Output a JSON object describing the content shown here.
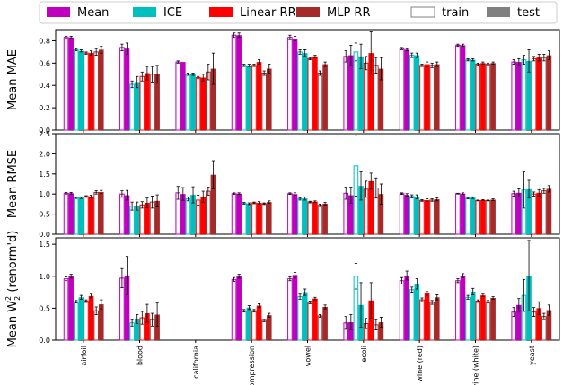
{
  "chart_data": {
    "type": "bar",
    "categories": [
      "airfoil",
      "blood",
      "california",
      "ompression",
      "vowel",
      "ecoli",
      "wine (red)",
      "vine (white)",
      "yeast"
    ],
    "legend": {
      "placement": "top-center",
      "entries": [
        {
          "label": "Mean",
          "color": "#bf00bf",
          "style": "filled"
        },
        {
          "label": "ICE",
          "color": "#00bfbf",
          "style": "filled"
        },
        {
          "label": "Linear RR",
          "color": "#ff0000",
          "style": "filled"
        },
        {
          "label": "MLP RR",
          "color": "#a52a2a",
          "style": "filled"
        },
        {
          "label": "train",
          "color": "#808080",
          "style": "outline"
        },
        {
          "label": "test",
          "color": "#808080",
          "style": "filled"
        }
      ]
    },
    "method_colors": [
      "#bf00bf",
      "#00bfbf",
      "#ff0000",
      "#a52a2a"
    ],
    "bar_order": "per method: train then test",
    "panels": [
      {
        "ylabel": "Mean MAE",
        "ylim": [
          0,
          0.9
        ],
        "yticks": [
          "0.0",
          "0.2",
          "0.4",
          "0.6",
          "0.8"
        ],
        "ytick_values": [
          0,
          0.2,
          0.4,
          0.6,
          0.8
        ],
        "series": [
          {
            "name": "Mean train",
            "values": [
              0.83,
              0.74,
              0.61,
              0.85,
              0.83,
              0.66,
              0.73,
              0.76,
              0.61
            ],
            "errors": [
              0.01,
              0.03,
              0.01,
              0.02,
              0.02,
              0.05,
              0.01,
              0.01,
              0.02
            ]
          },
          {
            "name": "Mean test",
            "values": [
              0.83,
              0.73,
              0.61,
              0.85,
              0.82,
              0.67,
              0.72,
              0.76,
              0.61
            ],
            "errors": [
              0.01,
              0.05,
              0.0,
              0.02,
              0.02,
              0.09,
              0.01,
              0.01,
              0.03
            ]
          },
          {
            "name": "ICE train",
            "values": [
              0.72,
              0.41,
              0.5,
              0.58,
              0.7,
              0.7,
              0.67,
              0.63,
              0.63
            ],
            "errors": [
              0.01,
              0.03,
              0.01,
              0.01,
              0.02,
              0.08,
              0.02,
              0.01,
              0.04
            ]
          },
          {
            "name": "ICE test",
            "values": [
              0.71,
              0.43,
              0.5,
              0.58,
              0.69,
              0.66,
              0.67,
              0.63,
              0.62
            ],
            "errors": [
              0.01,
              0.05,
              0.01,
              0.01,
              0.03,
              0.11,
              0.02,
              0.01,
              0.1
            ]
          },
          {
            "name": "Linear RR train",
            "values": [
              0.69,
              0.48,
              0.47,
              0.58,
              0.64,
              0.6,
              0.58,
              0.59,
              0.64
            ],
            "errors": [
              0.01,
              0.04,
              0.01,
              0.01,
              0.01,
              0.06,
              0.01,
              0.01,
              0.02
            ]
          },
          {
            "name": "Linear RR test",
            "values": [
              0.69,
              0.51,
              0.47,
              0.61,
              0.66,
              0.69,
              0.59,
              0.6,
              0.65
            ],
            "errors": [
              0.02,
              0.06,
              0.03,
              0.02,
              0.01,
              0.19,
              0.02,
              0.01,
              0.03
            ]
          },
          {
            "name": "MLP RR train",
            "values": [
              0.7,
              0.5,
              0.52,
              0.51,
              0.51,
              0.58,
              0.58,
              0.59,
              0.65
            ],
            "errors": [
              0.03,
              0.07,
              0.07,
              0.02,
              0.02,
              0.07,
              0.02,
              0.01,
              0.03
            ]
          },
          {
            "name": "MLP RR test",
            "values": [
              0.72,
              0.5,
              0.55,
              0.55,
              0.59,
              0.55,
              0.59,
              0.6,
              0.67
            ],
            "errors": [
              0.03,
              0.08,
              0.14,
              0.04,
              0.02,
              0.1,
              0.02,
              0.01,
              0.04
            ]
          }
        ]
      },
      {
        "ylabel": "Mean RMSE",
        "ylim": [
          0,
          2.5
        ],
        "yticks": [
          "0.0",
          "0.5",
          "1.0",
          "1.5",
          "2.0",
          "2.5"
        ],
        "ytick_values": [
          0,
          0.5,
          1.0,
          1.5,
          2.0,
          2.5
        ],
        "series": [
          {
            "name": "Mean train",
            "values": [
              1.02,
              1.0,
              1.03,
              1.01,
              1.01,
              1.02,
              1.01,
              1.01,
              1.01
            ],
            "errors": [
              0.02,
              0.08,
              0.16,
              0.02,
              0.02,
              0.15,
              0.02,
              0.01,
              0.06
            ]
          },
          {
            "name": "Mean test",
            "values": [
              1.02,
              0.97,
              1.0,
              1.01,
              1.0,
              0.97,
              0.98,
              1.01,
              1.03
            ],
            "errors": [
              0.02,
              0.12,
              0.16,
              0.02,
              0.03,
              0.2,
              0.03,
              0.02,
              0.1
            ]
          },
          {
            "name": "ICE train",
            "values": [
              0.91,
              0.7,
              0.88,
              0.77,
              0.88,
              1.7,
              0.94,
              0.9,
              1.1
            ],
            "errors": [
              0.02,
              0.1,
              0.05,
              0.02,
              0.03,
              0.75,
              0.04,
              0.02,
              0.45
            ]
          },
          {
            "name": "ICE test",
            "values": [
              0.91,
              0.7,
              0.98,
              0.76,
              0.89,
              1.2,
              0.93,
              0.91,
              1.12
            ],
            "errors": [
              0.02,
              0.1,
              0.2,
              0.02,
              0.04,
              0.35,
              0.05,
              0.02,
              0.22
            ]
          },
          {
            "name": "Linear RR train",
            "values": [
              0.94,
              0.73,
              0.85,
              0.78,
              0.8,
              1.12,
              0.84,
              0.84,
              1.0
            ],
            "errors": [
              0.02,
              0.08,
              0.12,
              0.02,
              0.02,
              0.2,
              0.02,
              0.01,
              0.05
            ]
          },
          {
            "name": "Linear RR test",
            "values": [
              0.94,
              0.78,
              0.93,
              0.78,
              0.81,
              1.32,
              0.85,
              0.85,
              1.03
            ],
            "errors": [
              0.03,
              0.12,
              0.14,
              0.03,
              0.02,
              0.2,
              0.03,
              0.01,
              0.08
            ]
          },
          {
            "name": "MLP RR train",
            "values": [
              1.04,
              0.8,
              1.07,
              0.76,
              0.72,
              1.15,
              0.85,
              0.84,
              1.08
            ],
            "errors": [
              0.04,
              0.15,
              0.1,
              0.02,
              0.03,
              0.25,
              0.03,
              0.01,
              0.06
            ]
          },
          {
            "name": "MLP RR test",
            "values": [
              1.05,
              0.83,
              1.48,
              0.8,
              0.76,
              1.0,
              0.87,
              0.86,
              1.13
            ],
            "errors": [
              0.04,
              0.15,
              0.35,
              0.03,
              0.03,
              0.25,
              0.04,
              0.02,
              0.08
            ]
          }
        ]
      },
      {
        "ylabel": "Mean W²₂ (renorm'd)",
        "ylabel_main": "Mean W",
        "ylabel_sup": "2",
        "ylabel_sub": "2",
        "ylabel_tail": " (renorm'd)",
        "ylim": [
          0,
          1.6
        ],
        "yticks": [
          "0.0",
          "0.5",
          "1.0",
          "1.5"
        ],
        "ytick_values": [
          0,
          0.5,
          1.0,
          1.5
        ],
        "series": [
          {
            "name": "Mean train",
            "values": [
              0.96,
              0.97,
              null,
              0.95,
              0.96,
              0.27,
              0.93,
              0.93,
              0.44
            ],
            "errors": [
              0.03,
              0.15,
              0,
              0.03,
              0.03,
              0.1,
              0.05,
              0.03,
              0.07
            ]
          },
          {
            "name": "Mean test",
            "values": [
              1.0,
              1.01,
              null,
              1.0,
              1.02,
              0.28,
              1.01,
              1.01,
              0.55
            ],
            "errors": [
              0.03,
              0.3,
              0,
              0.03,
              0.04,
              0.12,
              0.07,
              0.03,
              0.1
            ]
          },
          {
            "name": "ICE train",
            "values": [
              0.6,
              0.27,
              null,
              0.46,
              0.68,
              1.0,
              0.79,
              0.67,
              0.7
            ],
            "errors": [
              0.02,
              0.05,
              0,
              0.02,
              0.04,
              0.2,
              0.04,
              0.03,
              0.25
            ]
          },
          {
            "name": "ICE test",
            "values": [
              0.67,
              0.33,
              null,
              0.51,
              0.75,
              0.55,
              0.88,
              0.76,
              1.01
            ],
            "errors": [
              0.03,
              0.07,
              0,
              0.03,
              0.05,
              0.35,
              0.08,
              0.05,
              0.55
            ]
          },
          {
            "name": "Linear RR train",
            "values": [
              0.61,
              0.35,
              null,
              0.46,
              0.59,
              0.26,
              0.63,
              0.61,
              0.44
            ],
            "errors": [
              0.02,
              0.1,
              0,
              0.02,
              0.02,
              0.08,
              0.03,
              0.02,
              0.07
            ]
          },
          {
            "name": "Linear RR test",
            "values": [
              0.69,
              0.42,
              null,
              0.54,
              0.65,
              0.62,
              0.73,
              0.7,
              0.5
            ],
            "errors": [
              0.03,
              0.14,
              0,
              0.03,
              0.02,
              0.28,
              0.03,
              0.02,
              0.1
            ]
          },
          {
            "name": "MLP RR train",
            "values": [
              0.46,
              0.32,
              null,
              0.31,
              0.38,
              0.24,
              0.59,
              0.6,
              0.37
            ],
            "errors": [
              0.06,
              0.1,
              0,
              0.02,
              0.02,
              0.08,
              0.03,
              0.02,
              0.05
            ]
          },
          {
            "name": "MLP RR test",
            "values": [
              0.56,
              0.4,
              null,
              0.39,
              0.52,
              0.28,
              0.67,
              0.66,
              0.47
            ],
            "errors": [
              0.07,
              0.18,
              0,
              0.03,
              0.03,
              0.08,
              0.04,
              0.02,
              0.08
            ]
          }
        ]
      }
    ]
  }
}
